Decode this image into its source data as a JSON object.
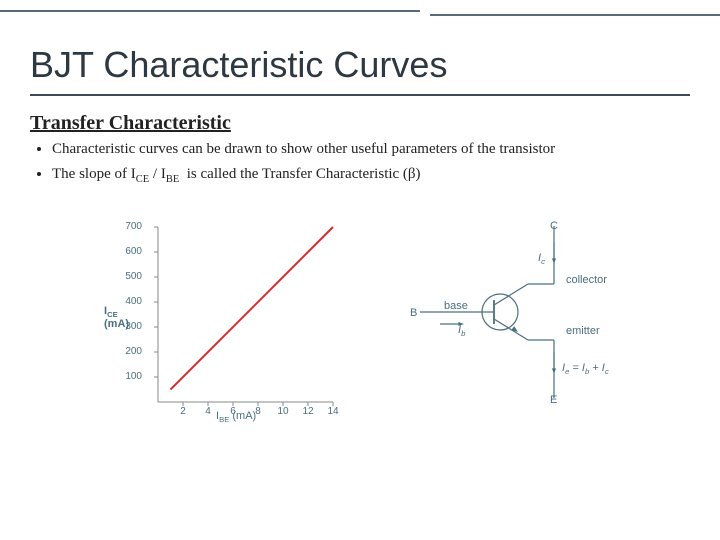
{
  "title": "BJT Characteristic Curves",
  "subtitle": "Transfer Characteristic",
  "bullets": [
    "Characteristic curves can be drawn to show other useful parameters of the transistor",
    "The slope of I<sub>CE</sub> / I<sub>BE</sub>  is called the Transfer Characteristic (β)"
  ],
  "top_line_color": "#5a6a78",
  "chart": {
    "type": "line",
    "y_title_html": "I<sub>CE</sub><br>(mA)",
    "x_title_html": "I<sub>BE</sub> (mA)",
    "x_ticks": [
      "2",
      "4",
      "6",
      "8",
      "10",
      "12",
      "14"
    ],
    "y_ticks": [
      "100",
      "200",
      "300",
      "400",
      "500",
      "600",
      "700"
    ],
    "xlim": [
      0,
      14
    ],
    "ylim": [
      0,
      700
    ],
    "line_color": "#e02828",
    "line_width": 2,
    "axis_color": "#888888",
    "tick_color": "#888888",
    "label_color": "#4a707f",
    "label_fontsize": 10,
    "background_color": "#ffffff",
    "points": [
      [
        1,
        50
      ],
      [
        14,
        700
      ]
    ]
  },
  "schematic": {
    "labels": {
      "C": "C",
      "B": "B",
      "E": "E",
      "collector": "collector",
      "base": "base",
      "emitter": "emitter",
      "ic_html": "I<sub>c</sub>",
      "ib_html": "I<sub>b</sub>",
      "ie_html": "I<sub>e</sub> = I<sub>b</sub> + I<sub>c</sub>"
    },
    "line_color": "#4a707f",
    "label_color": "#4a707f",
    "label_fontsize": 11,
    "circle_radius": 18
  }
}
